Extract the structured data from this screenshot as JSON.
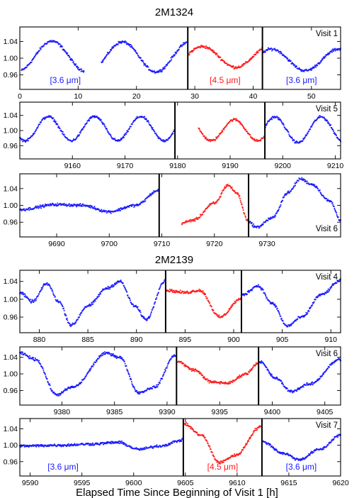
{
  "figure": {
    "headings": [
      "2M1324",
      "2M2139"
    ],
    "xlabel": "Elapsed Time Since Beginning of Visit 1 [h]"
  },
  "colors": {
    "blue": "#1a1aff",
    "red": "#ff1a1a"
  },
  "band_labels": {
    "ch1": "[3.6 μm]",
    "ch2": "[4.5 μm]"
  },
  "chart_data": [
    {
      "type": "scatter",
      "object": "2M1324",
      "visit_label": "Visit 1",
      "xlim": [
        0,
        55
      ],
      "ylim": [
        0.925,
        1.075
      ],
      "yticks": [
        0.96,
        1.0,
        1.04
      ],
      "xticks": [
        0,
        10,
        20,
        30,
        40,
        50
      ],
      "x_tick_labels": [
        "0",
        "10",
        "20",
        "30",
        "40",
        "50"
      ],
      "dividers": [
        28.8,
        41.6
      ],
      "show_band_labels": true,
      "series": [
        {
          "band": "3.6",
          "color": "blue",
          "x_range": [
            0.3,
            11.0
          ],
          "period": 11.5,
          "amplitude": 0.036,
          "phase_peak": 5.5,
          "offset": 1.005
        },
        {
          "band": "3.6",
          "color": "blue",
          "x_range": [
            14.0,
            28.6
          ],
          "period": 11.5,
          "amplitude": 0.036,
          "phase_peak": 17.6,
          "offset": 1.003
        },
        {
          "band": "4.5",
          "color": "red",
          "x_range": [
            28.9,
            41.5
          ],
          "period": 11.5,
          "amplitude": 0.025,
          "phase_peak": 31.3,
          "offset": 1.003
        },
        {
          "band": "3.6",
          "color": "blue",
          "x_range": [
            41.7,
            55.0
          ],
          "period": 11.5,
          "amplitude": 0.026,
          "phase_peak": 43.2,
          "offset": 0.996
        }
      ]
    },
    {
      "type": "scatter",
      "object": "2M1324",
      "visit_label": "Visit 5",
      "xlim": [
        9150,
        9211
      ],
      "ylim": [
        0.925,
        1.075
      ],
      "yticks": [
        0.96,
        1.0,
        1.04
      ],
      "xticks": [
        9160,
        9170,
        9180,
        9190,
        9200,
        9210
      ],
      "x_tick_labels": [
        "9160",
        "9170",
        "9180",
        "9190",
        "9200",
        "9210"
      ],
      "dividers": [
        9179.5,
        9196.6
      ],
      "show_band_labels": false,
      "series": [
        {
          "band": "3.6",
          "color": "blue",
          "x_range": [
            9150.0,
            9179.4
          ],
          "period": 8.8,
          "amplitude": 0.032,
          "phase_peak": 9164.2,
          "offset": 1.005
        },
        {
          "band": "4.5",
          "color": "red",
          "x_range": [
            9184.0,
            9196.5
          ],
          "period": 8.8,
          "amplitude": 0.028,
          "phase_peak": 9190.8,
          "offset": 1.001
        },
        {
          "band": "3.6",
          "color": "blue",
          "x_range": [
            9196.7,
            9211.0
          ],
          "period": 8.8,
          "amplitude": 0.034,
          "phase_peak": 9198.5,
          "offset": 1.002
        }
      ]
    },
    {
      "type": "scatter",
      "object": "2M1324",
      "visit_label": "Visit 6",
      "xlim": [
        9683,
        9744
      ],
      "ylim": [
        0.925,
        1.075
      ],
      "yticks": [
        0.96,
        1.0,
        1.04
      ],
      "xticks": [
        9690,
        9700,
        9710,
        9720,
        9730
      ],
      "x_tick_labels": [
        "9690",
        "9700",
        "9710",
        "9720",
        "9730"
      ],
      "dividers": [
        9709.5,
        9726.5
      ],
      "show_band_labels": false,
      "series": [
        {
          "band": "3.6",
          "color": "blue",
          "x_range": [
            9683.0,
            9709.4
          ],
          "shape": "flat",
          "points": [
            [
              9683,
              0.99
            ],
            [
              9690,
              1.002
            ],
            [
              9695,
              1.0
            ],
            [
              9700,
              0.985
            ],
            [
              9705,
              1.0
            ],
            [
              9709.4,
              1.035
            ]
          ]
        },
        {
          "band": "4.5",
          "color": "red",
          "x_range": [
            9713.8,
            9726.4
          ],
          "shape": "flat",
          "points": [
            [
              9713.8,
              0.958
            ],
            [
              9716,
              0.965
            ],
            [
              9720,
              1.005
            ],
            [
              9722.6,
              1.048
            ],
            [
              9724.2,
              1.03
            ],
            [
              9726.4,
              0.965
            ]
          ]
        },
        {
          "band": "3.6",
          "color": "blue",
          "x_range": [
            9726.6,
            9744.0
          ],
          "shape": "flat",
          "points": [
            [
              9726.6,
              0.96
            ],
            [
              9728,
              0.948
            ],
            [
              9731,
              0.97
            ],
            [
              9734,
              1.03
            ],
            [
              9736.4,
              1.063
            ],
            [
              9738.5,
              1.05
            ],
            [
              9742,
              1.01
            ],
            [
              9744,
              0.965
            ]
          ]
        }
      ]
    },
    {
      "type": "scatter",
      "object": "2M2139",
      "visit_label": "Visit 4",
      "xlim": [
        878,
        911
      ],
      "ylim": [
        0.925,
        1.065
      ],
      "yticks": [
        0.96,
        1.0,
        1.04
      ],
      "xticks": [
        880,
        885,
        890,
        895,
        900,
        905,
        910
      ],
      "x_tick_labels": [
        "880",
        "885",
        "890",
        "895",
        "900",
        "905",
        "910"
      ],
      "dividers": [
        893.0,
        900.8
      ],
      "show_band_labels": false,
      "series": [
        {
          "band": "3.6",
          "color": "blue",
          "x_range": [
            878.0,
            892.9
          ],
          "shape": "flat",
          "points": [
            [
              878,
              1.015
            ],
            [
              879.3,
              0.995
            ],
            [
              880.8,
              1.035
            ],
            [
              882,
              0.995
            ],
            [
              883.3,
              0.942
            ],
            [
              885,
              0.985
            ],
            [
              887,
              1.025
            ],
            [
              888.3,
              1.04
            ],
            [
              889.8,
              0.985
            ],
            [
              891,
              0.955
            ],
            [
              892.9,
              1.04
            ]
          ]
        },
        {
          "band": "4.5",
          "color": "red",
          "x_range": [
            893.1,
            900.7
          ],
          "shape": "flat",
          "points": [
            [
              893.1,
              1.02
            ],
            [
              895,
              1.015
            ],
            [
              896.5,
              1.02
            ],
            [
              898.6,
              0.96
            ],
            [
              900.7,
              1.0
            ]
          ]
        },
        {
          "band": "3.6",
          "color": "blue",
          "x_range": [
            900.9,
            911.0
          ],
          "shape": "flat",
          "points": [
            [
              900.9,
              1.01
            ],
            [
              902.5,
              1.03
            ],
            [
              904,
              0.99
            ],
            [
              905.5,
              0.94
            ],
            [
              907,
              0.96
            ],
            [
              909,
              1.01
            ],
            [
              911,
              1.042
            ]
          ]
        }
      ]
    },
    {
      "type": "scatter",
      "object": "2M2139",
      "visit_label": "Visit 6",
      "xlim": [
        9376,
        9406.5
      ],
      "ylim": [
        0.925,
        1.065
      ],
      "yticks": [
        0.96,
        1.0,
        1.04
      ],
      "xticks": [
        9380,
        9385,
        9390,
        9395,
        9400,
        9405
      ],
      "x_tick_labels": [
        "9380",
        "9385",
        "9390",
        "9395",
        "9400",
        "9405"
      ],
      "dividers": [
        9390.9,
        9398.7
      ],
      "show_band_labels": false,
      "series": [
        {
          "band": "3.6",
          "color": "blue",
          "x_range": [
            9376.0,
            9390.8
          ],
          "shape": "flat",
          "points": [
            [
              9376,
              1.05
            ],
            [
              9377.5,
              1.035
            ],
            [
              9379.5,
              0.95
            ],
            [
              9381,
              0.968
            ],
            [
              9384.3,
              1.05
            ],
            [
              9385.5,
              1.04
            ],
            [
              9387.3,
              0.955
            ],
            [
              9388.8,
              0.968
            ],
            [
              9390.8,
              1.045
            ]
          ]
        },
        {
          "band": "4.5",
          "color": "red",
          "x_range": [
            9391.0,
            9398.6
          ],
          "shape": "flat",
          "points": [
            [
              9391,
              1.03
            ],
            [
              9392.5,
              1.01
            ],
            [
              9394.3,
              0.98
            ],
            [
              9395.8,
              0.978
            ],
            [
              9397.5,
              1.0
            ],
            [
              9398.6,
              1.025
            ]
          ]
        },
        {
          "band": "3.6",
          "color": "blue",
          "x_range": [
            9398.8,
            9406.5
          ],
          "shape": "flat",
          "points": [
            [
              9398.8,
              1.03
            ],
            [
              9400.3,
              0.99
            ],
            [
              9401.8,
              0.958
            ],
            [
              9403.5,
              0.975
            ],
            [
              9406.5,
              1.035
            ]
          ]
        }
      ]
    },
    {
      "type": "scatter",
      "object": "2M2139",
      "visit_label": "Visit 7",
      "xlim": [
        9589,
        9620
      ],
      "ylim": [
        0.925,
        1.065
      ],
      "yticks": [
        0.96,
        1.0,
        1.04
      ],
      "xticks": [
        9590,
        9595,
        9600,
        9605,
        9610,
        9615,
        9620
      ],
      "x_tick_labels": [
        "9590",
        "9595",
        "9600",
        "9605",
        "9610",
        "9615",
        "9620"
      ],
      "dividers": [
        9604.8,
        9612.4
      ],
      "show_band_labels": true,
      "series": [
        {
          "band": "3.6",
          "color": "blue",
          "x_range": [
            9589.0,
            9604.7
          ],
          "shape": "flat",
          "points": [
            [
              9589,
              0.998
            ],
            [
              9593,
              1.0
            ],
            [
              9596,
              1.003
            ],
            [
              9598.5,
              1.007
            ],
            [
              9600.5,
              0.99
            ],
            [
              9602.5,
              0.998
            ],
            [
              9604.7,
              1.012
            ]
          ]
        },
        {
          "band": "4.5",
          "color": "red",
          "x_range": [
            9604.9,
            9612.3
          ],
          "shape": "flat",
          "points": [
            [
              9604.9,
              1.052
            ],
            [
              9606.5,
              1.025
            ],
            [
              9608.3,
              0.958
            ],
            [
              9609.8,
              0.975
            ],
            [
              9612.3,
              1.045
            ]
          ]
        },
        {
          "band": "3.6",
          "color": "blue",
          "x_range": [
            9612.5,
            9620.0
          ],
          "shape": "flat",
          "points": [
            [
              9612.5,
              1.008
            ],
            [
              9614.5,
              0.98
            ],
            [
              9616,
              0.965
            ],
            [
              9618,
              0.99
            ],
            [
              9620,
              1.025
            ]
          ]
        }
      ]
    }
  ]
}
